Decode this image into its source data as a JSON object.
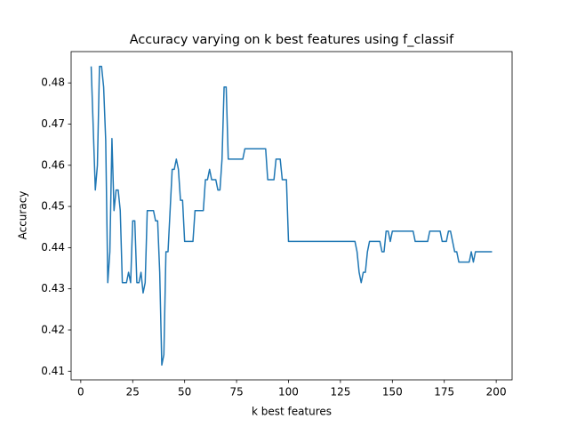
{
  "chart_data": {
    "type": "line",
    "title": "Accuracy varying on k best features using f_classif",
    "x_label": "k best features",
    "y_label": "Accuracy",
    "x": [
      5,
      7,
      8,
      9,
      10,
      11,
      12,
      13,
      14,
      15,
      16,
      17,
      18,
      19,
      20,
      22,
      23,
      24,
      25,
      26,
      27,
      28,
      29,
      30,
      31,
      32,
      35,
      36,
      37,
      38,
      39,
      40,
      41,
      42,
      43,
      44,
      45,
      46,
      47,
      48,
      49,
      50,
      54,
      55,
      59,
      60,
      61,
      62,
      63,
      65,
      66,
      67,
      68,
      69,
      70,
      71,
      78,
      79,
      89,
      90,
      93,
      94,
      96,
      97,
      99,
      100,
      132,
      133,
      134,
      135,
      136,
      137,
      138,
      139,
      144,
      145,
      146,
      147,
      148,
      149,
      150,
      160,
      161,
      167,
      168,
      173,
      174,
      176,
      177,
      178,
      179,
      180,
      181,
      182,
      187,
      188,
      189,
      190,
      198
    ],
    "series": [
      {
        "color": "#1f77b4",
        "values": [
          0.484,
          0.454,
          0.46,
          0.484,
          0.484,
          0.479,
          0.466,
          0.4315,
          0.439,
          0.4665,
          0.449,
          0.454,
          0.454,
          0.449,
          0.4315,
          0.4315,
          0.434,
          0.4315,
          0.4465,
          0.4465,
          0.4315,
          0.4315,
          0.434,
          0.429,
          0.4315,
          0.449,
          0.449,
          0.4465,
          0.4465,
          0.434,
          0.4115,
          0.414,
          0.439,
          0.439,
          0.449,
          0.459,
          0.459,
          0.4615,
          0.459,
          0.4515,
          0.4515,
          0.4415,
          0.4415,
          0.449,
          0.449,
          0.4565,
          0.4565,
          0.459,
          0.4565,
          0.4565,
          0.454,
          0.454,
          0.4615,
          0.479,
          0.479,
          0.4615,
          0.4615,
          0.464,
          0.464,
          0.4565,
          0.4565,
          0.4615,
          0.4615,
          0.4565,
          0.4565,
          0.4415,
          0.4415,
          0.439,
          0.434,
          0.4315,
          0.434,
          0.434,
          0.439,
          0.4415,
          0.4415,
          0.439,
          0.439,
          0.444,
          0.444,
          0.4415,
          0.444,
          0.444,
          0.4415,
          0.4415,
          0.444,
          0.444,
          0.4415,
          0.4415,
          0.444,
          0.444,
          0.4415,
          0.439,
          0.439,
          0.4365,
          0.4365,
          0.439,
          0.4365,
          0.439,
          0.439
        ]
      }
    ],
    "xlim": [
      -4.65,
      207.65
    ],
    "xticks": [
      0,
      25,
      50,
      75,
      100,
      125,
      150,
      175,
      200
    ],
    "ylim": [
      0.4079,
      0.4876
    ],
    "yticks": [
      0.41,
      0.42,
      0.43,
      0.44,
      0.45,
      0.46,
      0.47,
      0.48
    ],
    "grid": false
  }
}
